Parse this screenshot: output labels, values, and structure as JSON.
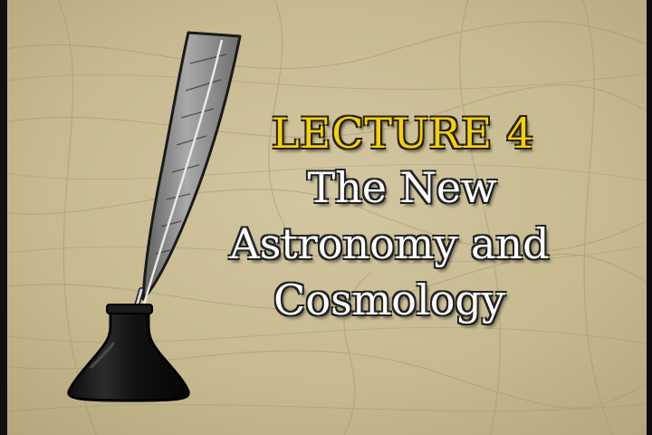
{
  "slide": {
    "lecture_label": "LECTURE 4",
    "title_lines": [
      "The New",
      "Astronomy and",
      "Cosmology"
    ]
  },
  "colors": {
    "background": "#c9bc96",
    "lecture_label": "#f2cf1c",
    "title_text": "#ffffff",
    "ink_bottle": "#161616",
    "feather": "#8c8c8c"
  },
  "art": {
    "icon": "quill-and-inkwell-icon"
  }
}
